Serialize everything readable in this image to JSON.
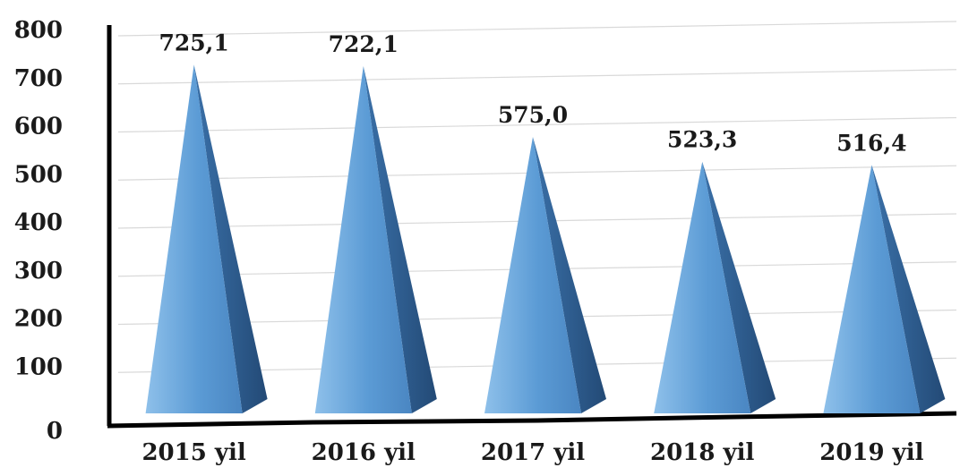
{
  "chart_data": {
    "type": "bar",
    "style": "3d-pyramid",
    "categories": [
      "2015 yil",
      "2016 yil",
      "2017 yil",
      "2018 yil",
      "2019 yil"
    ],
    "values": [
      725.1,
      722.1,
      575.0,
      523.3,
      516.4
    ],
    "data_labels": [
      "725,1",
      "722,1",
      "575,0",
      "523,3",
      "516,4"
    ],
    "ylim": [
      0,
      800
    ],
    "yticks": [
      0,
      100,
      200,
      300,
      400,
      500,
      600,
      700,
      800
    ],
    "ytick_labels": [
      "0",
      "100",
      "200",
      "300",
      "400",
      "500",
      "600",
      "700",
      "800"
    ],
    "grid": true,
    "legend": "none",
    "colors": {
      "front_face": "#5b9bd5",
      "front_light": "#8ec0ea",
      "side_face": "#2f5f93",
      "grid": "#d9d9d9",
      "axis": "#000000"
    }
  }
}
